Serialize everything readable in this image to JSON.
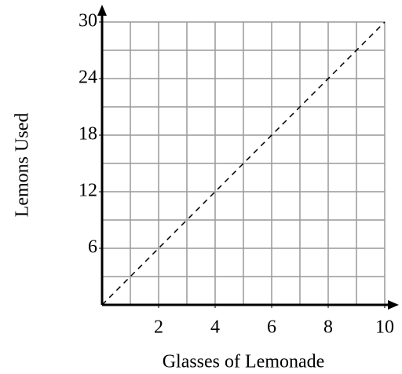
{
  "chart_data": {
    "type": "line",
    "xlabel": "Glasses of Lemonade",
    "ylabel": "Lemons Used",
    "x": [
      0,
      10
    ],
    "series": [
      {
        "values": [
          0,
          30
        ],
        "color": "#000000",
        "dashed": true
      }
    ],
    "xlim": [
      0,
      10
    ],
    "ylim": [
      0,
      30
    ],
    "xticks": [
      2,
      4,
      6,
      8,
      10
    ],
    "yticks": [
      6,
      12,
      18,
      24,
      30
    ],
    "xgrid": [
      1,
      2,
      3,
      4,
      5,
      6,
      7,
      8,
      9,
      10
    ],
    "ygrid": [
      3,
      6,
      9,
      12,
      15,
      18,
      21,
      24,
      27,
      30
    ],
    "grid": true
  }
}
